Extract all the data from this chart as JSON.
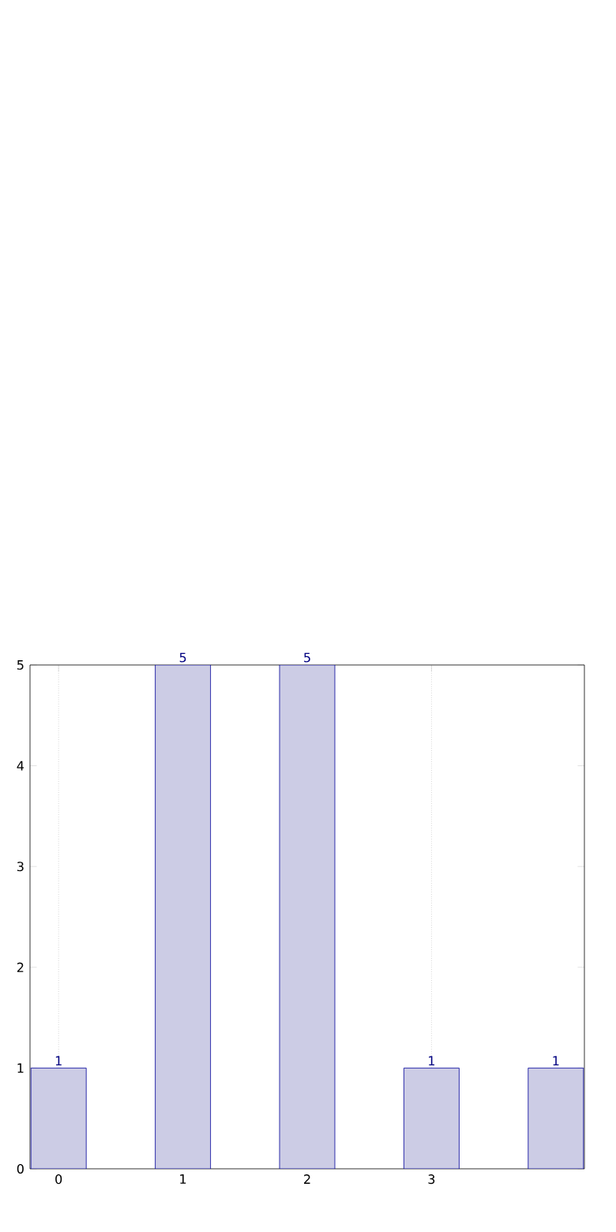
{
  "chart_data": {
    "type": "bar",
    "categories": [
      "0",
      "1",
      "2",
      "3",
      null
    ],
    "values": [
      1,
      5,
      5,
      1,
      1
    ],
    "color": "#ccccE5",
    "ylim": [
      0,
      5
    ],
    "yticks": [
      0,
      1,
      2,
      3,
      4,
      5
    ],
    "grid": "x",
    "data_labels": true
  }
}
